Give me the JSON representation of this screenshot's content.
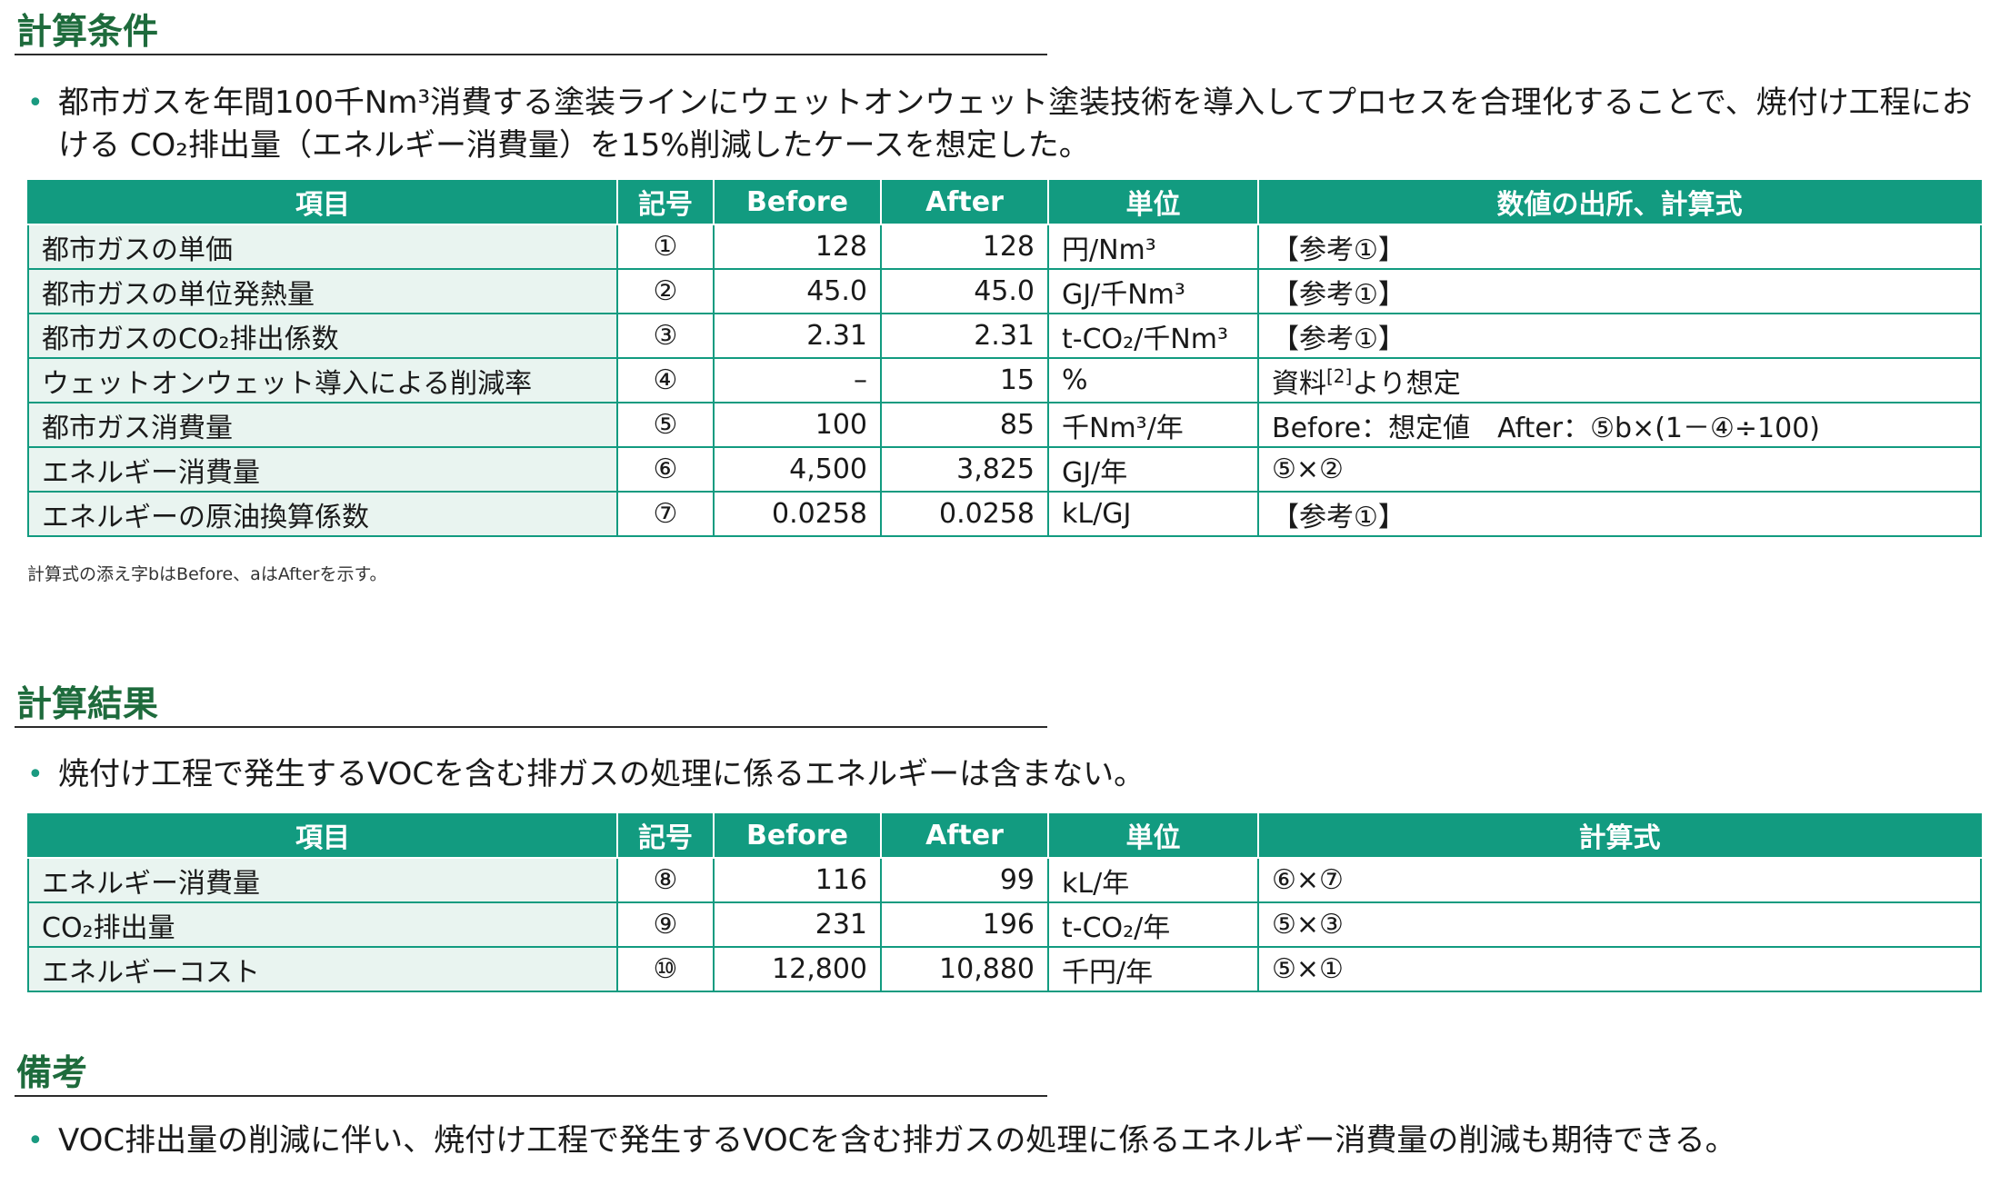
{
  "conditions": {
    "heading": "計算条件",
    "bullet": "都市ガスを年間100千Nm³消費する塗装ラインにウェットオンウェット塗装技術を導入してプロセスを合理化することで、焼付け工程における CO₂排出量（エネルギー消費量）を15%削減したケースを想定した。",
    "headers": [
      "項目",
      "記号",
      "Before",
      "After",
      "単位",
      "数値の出所、計算式"
    ],
    "rows": [
      {
        "item": "都市ガスの単価",
        "symbol": "①",
        "before": "128",
        "after": "128",
        "unit": "円/Nm³",
        "source": "【参考①】"
      },
      {
        "item": "都市ガスの単位発熱量",
        "symbol": "②",
        "before": "45.0",
        "after": "45.0",
        "unit": "GJ/千Nm³",
        "source": "【参考①】"
      },
      {
        "item": "都市ガスのCO₂排出係数",
        "symbol": "③",
        "before": "2.31",
        "after": "2.31",
        "unit": "t-CO₂/千Nm³",
        "source": "【参考①】"
      },
      {
        "item": "ウェットオンウェット導入による削減率",
        "symbol": "④",
        "before": "–",
        "after": "15",
        "unit": "%",
        "source_pre": "資料",
        "source_sup": "[2]",
        "source_post": "より想定"
      },
      {
        "item": "都市ガス消費量",
        "symbol": "⑤",
        "before": "100",
        "after": "85",
        "unit": "千Nm³/年",
        "source": "Before：想定値　After：⑤b×(1－④÷100)"
      },
      {
        "item": "エネルギー消費量",
        "symbol": "⑥",
        "before": "4,500",
        "after": "3,825",
        "unit": "GJ/年",
        "source": "⑤×②"
      },
      {
        "item": "エネルギーの原油換算係数",
        "symbol": "⑦",
        "before": "0.0258",
        "after": "0.0258",
        "unit": "kL/GJ",
        "source": "【参考①】"
      }
    ],
    "note": "計算式の添え字bはBefore、aはAfterを示す。"
  },
  "results": {
    "heading": "計算結果",
    "bullet": "焼付け工程で発生するVOCを含む排ガスの処理に係るエネルギーは含まない。",
    "headers": [
      "項目",
      "記号",
      "Before",
      "After",
      "単位",
      "計算式"
    ],
    "rows": [
      {
        "item": "エネルギー消費量",
        "symbol": "⑧",
        "before": "116",
        "after": "99",
        "unit": "kL/年",
        "source": "⑥×⑦"
      },
      {
        "item": "CO₂排出量",
        "symbol": "⑨",
        "before": "231",
        "after": "196",
        "unit": "t-CO₂/年",
        "source": "⑤×③"
      },
      {
        "item": "エネルギーコスト",
        "symbol": "⑩",
        "before": "12,800",
        "after": "10,880",
        "unit": "千円/年",
        "source": "⑤×①"
      }
    ]
  },
  "remarks": {
    "heading": "備考",
    "bullet": "VOC排出量の削減に伴い、焼付け工程で発生するVOCを含む排ガスの処理に係るエネルギー消費量の削減も期待できる。"
  }
}
